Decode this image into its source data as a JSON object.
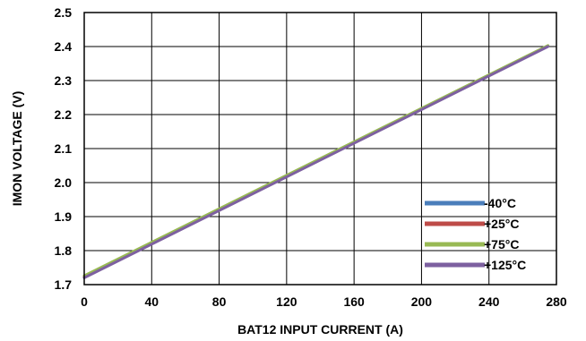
{
  "chart_data": {
    "type": "line",
    "xlabel": "BAT12 INPUT CURRENT (A)",
    "ylabel": "IMON VOLTAGE (V)",
    "xlim": [
      0,
      280
    ],
    "ylim": [
      1.7,
      2.5
    ],
    "xticks": [
      0,
      40,
      80,
      120,
      160,
      200,
      240,
      280
    ],
    "yticks": [
      1.7,
      1.8,
      1.9,
      2.0,
      2.1,
      2.2,
      2.3,
      2.4,
      2.5
    ],
    "xtick_labels": [
      "0",
      "40",
      "80",
      "120",
      "160",
      "200",
      "240",
      "280"
    ],
    "ytick_labels": [
      "1.7",
      "1.8",
      "1.9",
      "2.0",
      "2.1",
      "2.2",
      "2.3",
      "2.4",
      "2.5"
    ],
    "grid": true,
    "legend_position": "bottom-right",
    "series": [
      {
        "name": "-40°C",
        "color": "#4a7ebb",
        "x": [
          0,
          275
        ],
        "y": [
          1.722,
          2.401
        ]
      },
      {
        "name": "+25°C",
        "color": "#be4b48",
        "x": [
          0,
          275
        ],
        "y": [
          1.724,
          2.402
        ]
      },
      {
        "name": "+75°C",
        "color": "#98b954",
        "x": [
          0,
          275
        ],
        "y": [
          1.726,
          2.403
        ]
      },
      {
        "name": "+125°C",
        "color": "#7d60a0",
        "x": [
          0,
          275
        ],
        "y": [
          1.72,
          2.4
        ]
      }
    ]
  }
}
